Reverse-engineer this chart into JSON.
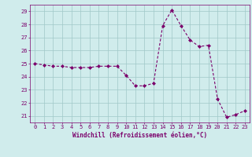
{
  "x": [
    0,
    1,
    2,
    3,
    4,
    5,
    6,
    7,
    8,
    9,
    10,
    11,
    12,
    13,
    14,
    15,
    16,
    17,
    18,
    19,
    20,
    21,
    22,
    23
  ],
  "y": [
    25.0,
    24.9,
    24.8,
    24.8,
    24.7,
    24.7,
    24.7,
    24.8,
    24.8,
    24.8,
    24.1,
    23.3,
    23.3,
    23.5,
    27.9,
    29.1,
    27.9,
    26.8,
    26.3,
    26.4,
    22.3,
    20.9,
    21.1,
    21.4
  ],
  "line_color": "#7B006B",
  "marker_color": "#7B006B",
  "bg_color": "#d0ecec",
  "grid_color": "#a0c8c8",
  "xlabel": "Windchill (Refroidissement éolien,°C)",
  "xlabel_color": "#7B006B",
  "tick_color": "#7B006B",
  "spine_color": "#7B006B",
  "ylim": [
    20.5,
    29.5
  ],
  "yticks": [
    21,
    22,
    23,
    24,
    25,
    26,
    27,
    28,
    29
  ],
  "xticks": [
    0,
    1,
    2,
    3,
    4,
    5,
    6,
    7,
    8,
    9,
    10,
    11,
    12,
    13,
    14,
    15,
    16,
    17,
    18,
    19,
    20,
    21,
    22,
    23
  ],
  "xlim": [
    -0.5,
    23.5
  ]
}
